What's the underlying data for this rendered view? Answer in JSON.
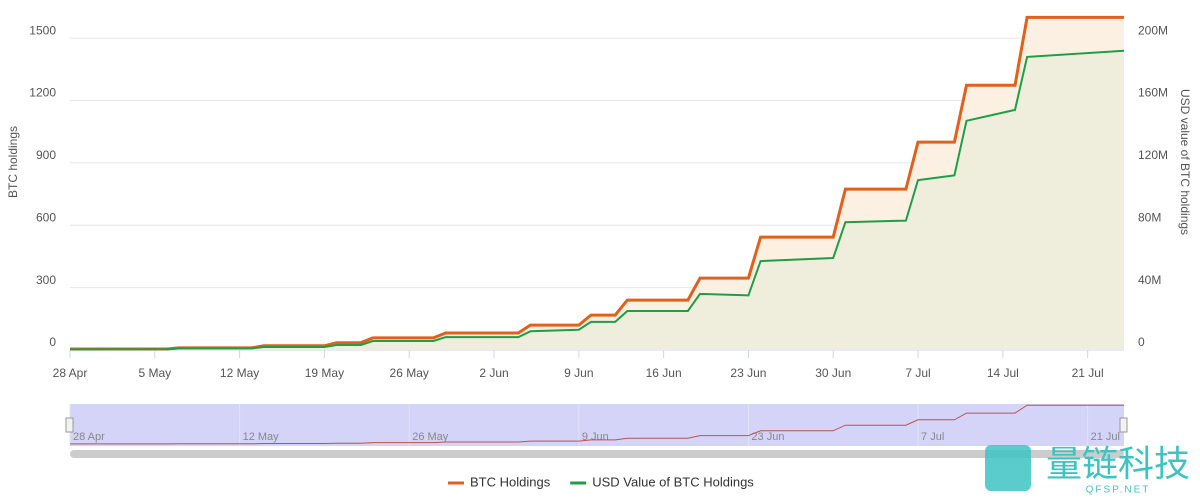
{
  "chart_data": {
    "type": "line",
    "y_label": "BTC holdings",
    "y2_label": "USD value of BTC holdings",
    "x": [
      "28 Apr",
      "6 May",
      "7 May",
      "13 May",
      "14 May",
      "19 May",
      "20 May",
      "22 May",
      "23 May",
      "28 May",
      "29 May",
      "4 Jun",
      "5 Jun",
      "9 Jun",
      "10 Jun",
      "12 Jun",
      "13 Jun",
      "18 Jun",
      "19 Jun",
      "23 Jun",
      "24 Jun",
      "30 Jun",
      "1 Jul",
      "6 Jul",
      "7 Jul",
      "10 Jul",
      "11 Jul",
      "15 Jul",
      "16 Jul",
      "24 Jul"
    ],
    "xlim": [
      "28 Apr",
      "24 Jul"
    ],
    "xticks": [
      "28 Apr",
      "5 May",
      "12 May",
      "19 May",
      "26 May",
      "2 Jun",
      "9 Jun",
      "16 Jun",
      "23 Jun",
      "30 Jun",
      "7 Jul",
      "14 Jul",
      "21 Jul"
    ],
    "ylim": [
      0,
      1650
    ],
    "yticks": [
      0,
      300,
      600,
      900,
      1200,
      1500
    ],
    "y2lim": [
      0,
      220000000
    ],
    "y2ticks": [
      0,
      {
        "value": 40000000,
        "label": "40M"
      },
      {
        "value": 80000000,
        "label": "80M"
      },
      {
        "value": 120000000,
        "label": "120M"
      },
      {
        "value": 160000000,
        "label": "160M"
      },
      {
        "value": 200000000,
        "label": "200M"
      }
    ],
    "grid": true,
    "series": [
      {
        "name": "BTC Holdings",
        "color": "#e0601c",
        "area_color": "#fcf0e2",
        "values": [
          5,
          5,
          10,
          10,
          20,
          20,
          35,
          35,
          58,
          58,
          82,
          82,
          120,
          120,
          168,
          168,
          240,
          240,
          346,
          346,
          543,
          543,
          774,
          774,
          1000,
          1000,
          1274,
          1274,
          1600,
          1600
        ]
      },
      {
        "name": "USD Value of BTC Holdings",
        "color": "#1e9e45",
        "area_color": "#efeedd",
        "axis": "y2",
        "values": [
          300000,
          500000,
          1000000,
          1000000,
          1900000,
          1900000,
          3200000,
          3200000,
          5800000,
          5800000,
          8300000,
          8300000,
          12000000,
          13000000,
          18000000,
          18000000,
          25000000,
          25000000,
          36000000,
          35000000,
          57000000,
          59000000,
          82000000,
          83000000,
          109000000,
          112000000,
          147000000,
          154000000,
          188000000,
          192000000
        ]
      }
    ],
    "watermark": {
      "title": "量链科技",
      "subtitle": "QFSP.NET"
    }
  }
}
